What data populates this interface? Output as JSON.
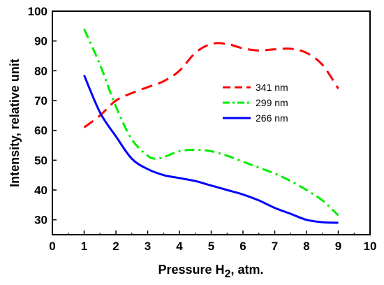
{
  "chart_data": {
    "type": "line",
    "xlabel": "Pressure H",
    "xlabel_sub": "2",
    "xlabel_suffix": ", atm.",
    "ylabel": "Intensity, relative unit",
    "xlim": [
      0,
      10
    ],
    "ylim": [
      25,
      100
    ],
    "x_ticks": [
      0,
      1,
      2,
      3,
      4,
      5,
      6,
      7,
      8,
      9,
      10
    ],
    "y_ticks": [
      30,
      40,
      50,
      60,
      70,
      80,
      90,
      100
    ],
    "grid": false,
    "legend_position": "center-right",
    "series": [
      {
        "name": "341 nm",
        "color": "#ff0000",
        "dash": "dashed",
        "x": [
          1,
          1.5,
          2,
          2.5,
          3,
          3.5,
          4,
          4.5,
          5,
          5.5,
          6,
          6.5,
          7,
          7.5,
          8,
          8.5,
          9
        ],
        "y": [
          61,
          65,
          70,
          72.5,
          74.5,
          76.5,
          80,
          86,
          89,
          89,
          87.5,
          86.8,
          87.2,
          87.4,
          86,
          82,
          74
        ]
      },
      {
        "name": "299 nm",
        "color": "#00ee00",
        "dash": "dashdot",
        "x": [
          1,
          1.5,
          2,
          2.5,
          3,
          3.25,
          3.5,
          4,
          4.5,
          5,
          5.5,
          6,
          6.5,
          7,
          7.5,
          8,
          8.5,
          9
        ],
        "y": [
          94,
          82,
          68,
          57,
          51.5,
          50.5,
          51,
          53,
          53.5,
          53,
          51.5,
          49.5,
          47.5,
          45.5,
          43,
          40,
          36.5,
          31.5
        ]
      },
      {
        "name": "266 nm",
        "color": "#0000ff",
        "dash": "solid",
        "x": [
          1,
          1.5,
          2,
          2.5,
          3,
          3.5,
          4,
          4.5,
          5,
          5.5,
          6,
          6.5,
          7,
          7.5,
          8,
          8.5,
          9
        ],
        "y": [
          78.5,
          66,
          58,
          50.5,
          47,
          45,
          44,
          43,
          41.5,
          40,
          38.5,
          36.5,
          34,
          32,
          30,
          29.2,
          29
        ]
      }
    ]
  }
}
